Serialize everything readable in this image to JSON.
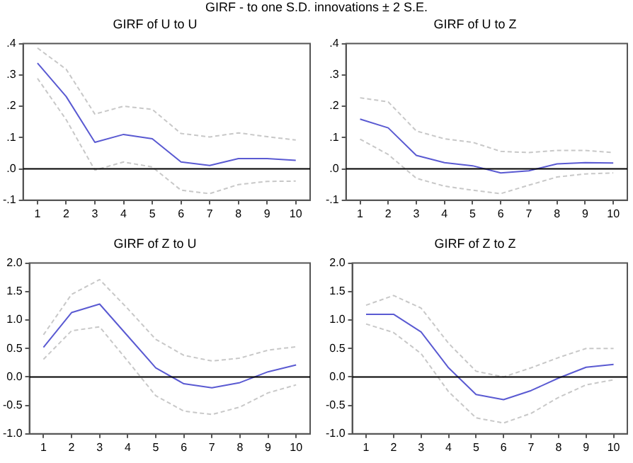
{
  "chart_data": [
    {
      "type": "line",
      "subtitle": "GIRF - to one S.D. innovations ± 2 S.E.",
      "title": "GIRF of U to U",
      "categories": [
        "1",
        "2",
        "3",
        "4",
        "5",
        "6",
        "7",
        "8",
        "9",
        "10"
      ],
      "series": [
        {
          "color": "#5a5ad2",
          "line_style": "solid",
          "values": [
            0.338,
            0.231,
            0.085,
            0.11,
            0.096,
            0.022,
            0.011,
            0.033,
            0.033,
            0.027
          ]
        },
        {
          "color": "#c8c8c8",
          "line_style": "dashed",
          "values": [
            0.386,
            0.318,
            0.175,
            0.2,
            0.19,
            0.113,
            0.102,
            0.115,
            0.103,
            0.092
          ]
        },
        {
          "color": "#c8c8c8",
          "line_style": "dashed",
          "values": [
            0.289,
            0.157,
            -0.004,
            0.022,
            0.006,
            -0.068,
            -0.079,
            -0.05,
            -0.04,
            -0.039
          ]
        }
      ],
      "ylim": [
        -0.1,
        0.4
      ],
      "yticks": [
        {
          "value": -0.1,
          "label": "-.1"
        },
        {
          "value": 0,
          "label": ".0"
        },
        {
          "value": 0.1,
          "label": ".1"
        },
        {
          "value": 0.2,
          "label": ".2"
        },
        {
          "value": 0.3,
          "label": ".3"
        },
        {
          "value": 0.4,
          "label": ".4"
        }
      ],
      "ref_lines": [
        {
          "axis": "y",
          "value": 0,
          "color": "#000000"
        }
      ],
      "grid": false,
      "legend": false
    },
    {
      "type": "line",
      "title": "GIRF of U to Z",
      "categories": [
        "1",
        "2",
        "3",
        "4",
        "5",
        "6",
        "7",
        "8",
        "9",
        "10"
      ],
      "series": [
        {
          "color": "#5a5ad2",
          "line_style": "solid",
          "values": [
            0.159,
            0.131,
            0.043,
            0.02,
            0.01,
            -0.013,
            -0.006,
            0.016,
            0.02,
            0.019
          ]
        },
        {
          "color": "#c8c8c8",
          "line_style": "dashed",
          "values": [
            0.227,
            0.214,
            0.121,
            0.096,
            0.085,
            0.056,
            0.052,
            0.059,
            0.059,
            0.052
          ]
        },
        {
          "color": "#c8c8c8",
          "line_style": "dashed",
          "values": [
            0.095,
            0.046,
            -0.03,
            -0.055,
            -0.068,
            -0.079,
            -0.052,
            -0.026,
            -0.016,
            -0.013
          ]
        }
      ],
      "ylim": [
        -0.1,
        0.4
      ],
      "yticks": [
        {
          "value": -0.1,
          "label": "-.1"
        },
        {
          "value": 0,
          "label": ".0"
        },
        {
          "value": 0.1,
          "label": ".1"
        },
        {
          "value": 0.2,
          "label": ".2"
        },
        {
          "value": 0.3,
          "label": ".3"
        },
        {
          "value": 0.4,
          "label": ".4"
        }
      ],
      "ref_lines": [
        {
          "axis": "y",
          "value": 0,
          "color": "#000000"
        }
      ],
      "grid": false,
      "legend": false
    },
    {
      "type": "line",
      "title": "GIRF of Z to U",
      "categories": [
        "1",
        "2",
        "3",
        "4",
        "5",
        "6",
        "7",
        "8",
        "9",
        "10"
      ],
      "series": [
        {
          "color": "#5a5ad2",
          "line_style": "solid",
          "values": [
            0.52,
            1.13,
            1.28,
            0.72,
            0.16,
            -0.12,
            -0.19,
            -0.1,
            0.09,
            0.21
          ]
        },
        {
          "color": "#c8c8c8",
          "line_style": "dashed",
          "values": [
            0.74,
            1.45,
            1.71,
            1.2,
            0.66,
            0.38,
            0.28,
            0.33,
            0.47,
            0.53
          ]
        },
        {
          "color": "#c8c8c8",
          "line_style": "dashed",
          "values": [
            0.31,
            0.81,
            0.88,
            0.28,
            -0.33,
            -0.6,
            -0.66,
            -0.53,
            -0.28,
            -0.14
          ]
        }
      ],
      "ylim": [
        -1,
        2
      ],
      "yticks": [
        {
          "value": -1,
          "label": "-1.0"
        },
        {
          "value": -0.5,
          "label": "-0.5"
        },
        {
          "value": 0,
          "label": "0.0"
        },
        {
          "value": 0.5,
          "label": "0.5"
        },
        {
          "value": 1,
          "label": "1.0"
        },
        {
          "value": 1.5,
          "label": "1.5"
        },
        {
          "value": 2,
          "label": "2.0"
        }
      ],
      "ref_lines": [
        {
          "axis": "y",
          "value": 0,
          "color": "#000000"
        }
      ],
      "grid": false,
      "legend": false
    },
    {
      "type": "line",
      "title": "GIRF of Z to Z",
      "categories": [
        "1",
        "2",
        "3",
        "4",
        "5",
        "6",
        "7",
        "8",
        "9",
        "10"
      ],
      "series": [
        {
          "color": "#5a5ad2",
          "line_style": "solid",
          "values": [
            1.1,
            1.1,
            0.79,
            0.16,
            -0.31,
            -0.4,
            -0.24,
            -0.02,
            0.17,
            0.22
          ]
        },
        {
          "color": "#c8c8c8",
          "line_style": "dashed",
          "values": [
            1.26,
            1.43,
            1.21,
            0.59,
            0.1,
            0.0,
            0.16,
            0.34,
            0.5,
            0.5
          ]
        },
        {
          "color": "#c8c8c8",
          "line_style": "dashed",
          "values": [
            0.93,
            0.78,
            0.41,
            -0.26,
            -0.72,
            -0.81,
            -0.64,
            -0.36,
            -0.14,
            -0.05
          ]
        }
      ],
      "ylim": [
        -1,
        2
      ],
      "yticks": [
        {
          "value": -1,
          "label": "-1.0"
        },
        {
          "value": -0.5,
          "label": "-0.5"
        },
        {
          "value": 0,
          "label": "0.0"
        },
        {
          "value": 0.5,
          "label": "0.5"
        },
        {
          "value": 1,
          "label": "1.0"
        },
        {
          "value": 1.5,
          "label": "1.5"
        },
        {
          "value": 2,
          "label": "2.0"
        }
      ],
      "ref_lines": [
        {
          "axis": "y",
          "value": 0,
          "color": "#000000"
        }
      ],
      "grid": false,
      "legend": false
    }
  ]
}
